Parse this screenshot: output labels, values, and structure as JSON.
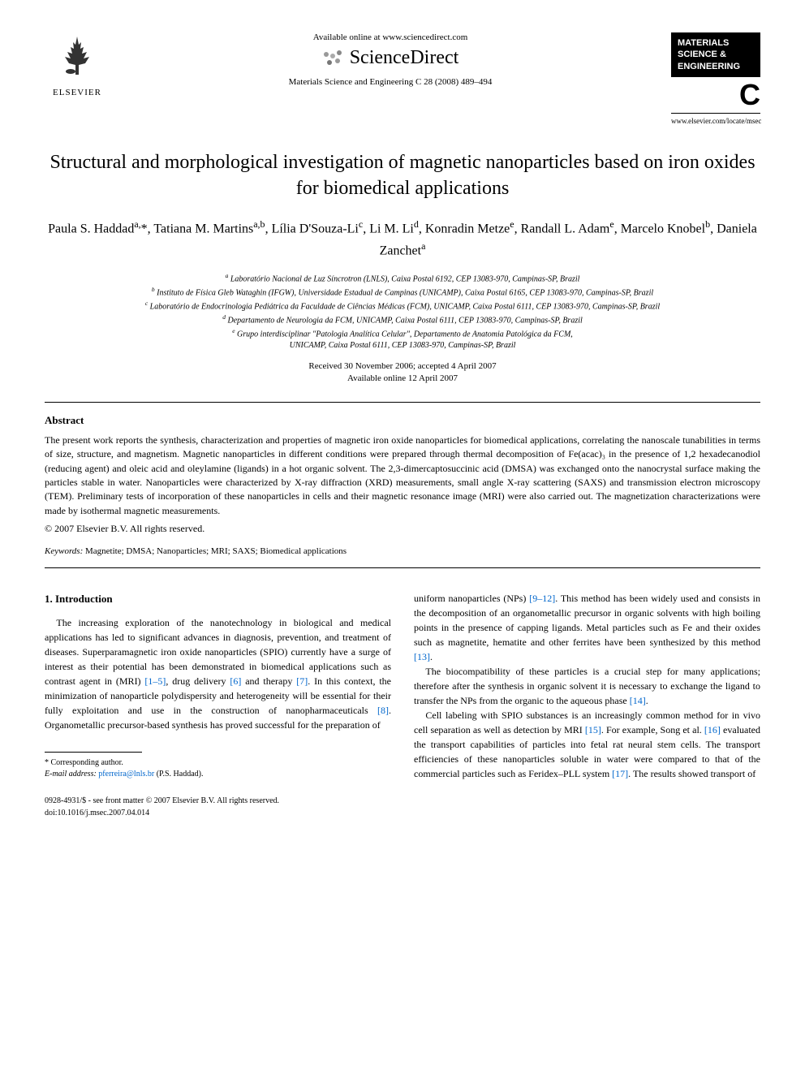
{
  "header": {
    "elsevier_label": "ELSEVIER",
    "available_online": "Available online at www.sciencedirect.com",
    "sciencedirect": "ScienceDirect",
    "journal_ref": "Materials Science and Engineering C 28 (2008) 489–494",
    "journal_box_line1": "MATERIALS",
    "journal_box_line2": "SCIENCE &",
    "journal_box_line3": "ENGINEERING",
    "journal_c": "C",
    "journal_url": "www.elsevier.com/locate/msec"
  },
  "title": "Structural and morphological investigation of magnetic nanoparticles based on iron oxides for biomedical applications",
  "authors_html": "Paula S. Haddad<sup>a,</sup>*, Tatiana M. Martins<sup>a,b</sup>, Lília D'Souza-Li<sup>c</sup>, Li M. Li<sup>d</sup>, Konradin Metze<sup>e</sup>, Randall L. Adam<sup>e</sup>, Marcelo Knobel<sup>b</sup>, Daniela Zanchet<sup>a</sup>",
  "affiliations": {
    "a": "Laboratório Nacional de Luz Síncrotron (LNLS), Caixa Postal 6192, CEP 13083-970, Campinas-SP, Brazil",
    "b": "Instituto de Física Gleb Wataghin (IFGW), Universidade Estadual de Campinas (UNICAMP), Caixa Postal 6165, CEP 13083-970, Campinas-SP, Brazil",
    "c": "Laboratório de Endocrinologia Pediátrica da Faculdade de Ciências Médicas (FCM), UNICAMP, Caixa Postal 6111, CEP 13083-970, Campinas-SP, Brazil",
    "d": "Departamento de Neurologia da FCM, UNICAMP, Caixa Postal 6111, CEP 13083-970, Campinas-SP, Brazil",
    "e_line1": "Grupo interdisciplinar \"Patologia Analítica Celular\", Departamento de Anatomia Patológica da FCM,",
    "e_line2": "UNICAMP, Caixa Postal 6111, CEP 13083-970, Campinas-SP, Brazil"
  },
  "dates": {
    "received": "Received 30 November 2006; accepted 4 April 2007",
    "available": "Available online 12 April 2007"
  },
  "abstract": {
    "heading": "Abstract",
    "text": "The present work reports the synthesis, characterization and properties of magnetic iron oxide nanoparticles for biomedical applications, correlating the nanoscale tunabilities in terms of size, structure, and magnetism. Magnetic nanoparticles in different conditions were prepared through thermal decomposition of Fe(acac)₃ in the presence of 1,2 hexadecanodiol (reducing agent) and oleic acid and oleylamine (ligands) in a hot organic solvent. The 2,3-dimercaptosuccinic acid (DMSA) was exchanged onto the nanocrystal surface making the particles stable in water. Nanoparticles were characterized by X-ray diffraction (XRD) measurements, small angle X-ray scattering (SAXS) and transmission electron microscopy (TEM). Preliminary tests of incorporation of these nanoparticles in cells and their magnetic resonance image (MRI) were also carried out. The magnetization characterizations were made by isothermal magnetic measurements.",
    "copyright": "© 2007 Elsevier B.V. All rights reserved."
  },
  "keywords": {
    "label": "Keywords:",
    "text": "Magnetite; DMSA; Nanoparticles; MRI; SAXS; Biomedical applications"
  },
  "intro": {
    "heading": "1. Introduction",
    "col1_p1_a": "The increasing exploration of the nanotechnology in biological and medical applications has led to significant advances in diagnosis, prevention, and treatment of diseases. Superparamagnetic iron oxide nanoparticles (SPIO) currently have a surge of interest as their potential has been demonstrated in biomedical applications such as contrast agent in (MRI) ",
    "ref1": "[1–5]",
    "col1_p1_b": ", drug delivery ",
    "ref2": "[6]",
    "col1_p1_c": " and therapy ",
    "ref3": "[7]",
    "col1_p1_d": ". In this context, the minimization of nanoparticle polydispersity and heterogeneity will be essential for their fully exploitation and use in the construction of nanopharmaceuticals ",
    "ref4": "[8]",
    "col1_p1_e": ". Organometallic precursor-based synthesis has proved successful for the preparation of",
    "col2_p1_a": "uniform nanoparticles (NPs) ",
    "ref5": "[9–12]",
    "col2_p1_b": ". This method has been widely used and consists in the decomposition of an organometallic precursor in organic solvents with high boiling points in the presence of capping ligands. Metal particles such as Fe and their oxides such as magnetite, hematite and other ferrites have been synthesized by this method ",
    "ref6": "[13]",
    "col2_p1_c": ".",
    "col2_p2_a": "The biocompatibility of these particles is a crucial step for many applications; therefore after the synthesis in organic solvent it is necessary to exchange the ligand to transfer the NPs from the organic to the aqueous phase ",
    "ref7": "[14]",
    "col2_p2_b": ".",
    "col2_p3_a": "Cell labeling with SPIO substances is an increasingly common method for in vivo cell separation as well as detection by MRI ",
    "ref8": "[15]",
    "col2_p3_b": ". For example, Song et al. ",
    "ref9": "[16]",
    "col2_p3_c": " evaluated the transport capabilities of particles into fetal rat neural stem cells. The transport efficiencies of these nanoparticles soluble in water were compared to that of the commercial particles such as Feridex–PLL system ",
    "ref10": "[17]",
    "col2_p3_d": ". The results showed transport of"
  },
  "footnote": {
    "corresponding": "* Corresponding author.",
    "email_label": "E-mail address:",
    "email": "pferreira@lnls.br",
    "email_author": "(P.S. Haddad)."
  },
  "footer": {
    "left_line1": "0928-4931/$ - see front matter © 2007 Elsevier B.V. All rights reserved.",
    "left_line2": "doi:10.1016/j.msec.2007.04.014"
  },
  "colors": {
    "text": "#000000",
    "link": "#0066cc",
    "background": "#ffffff"
  }
}
